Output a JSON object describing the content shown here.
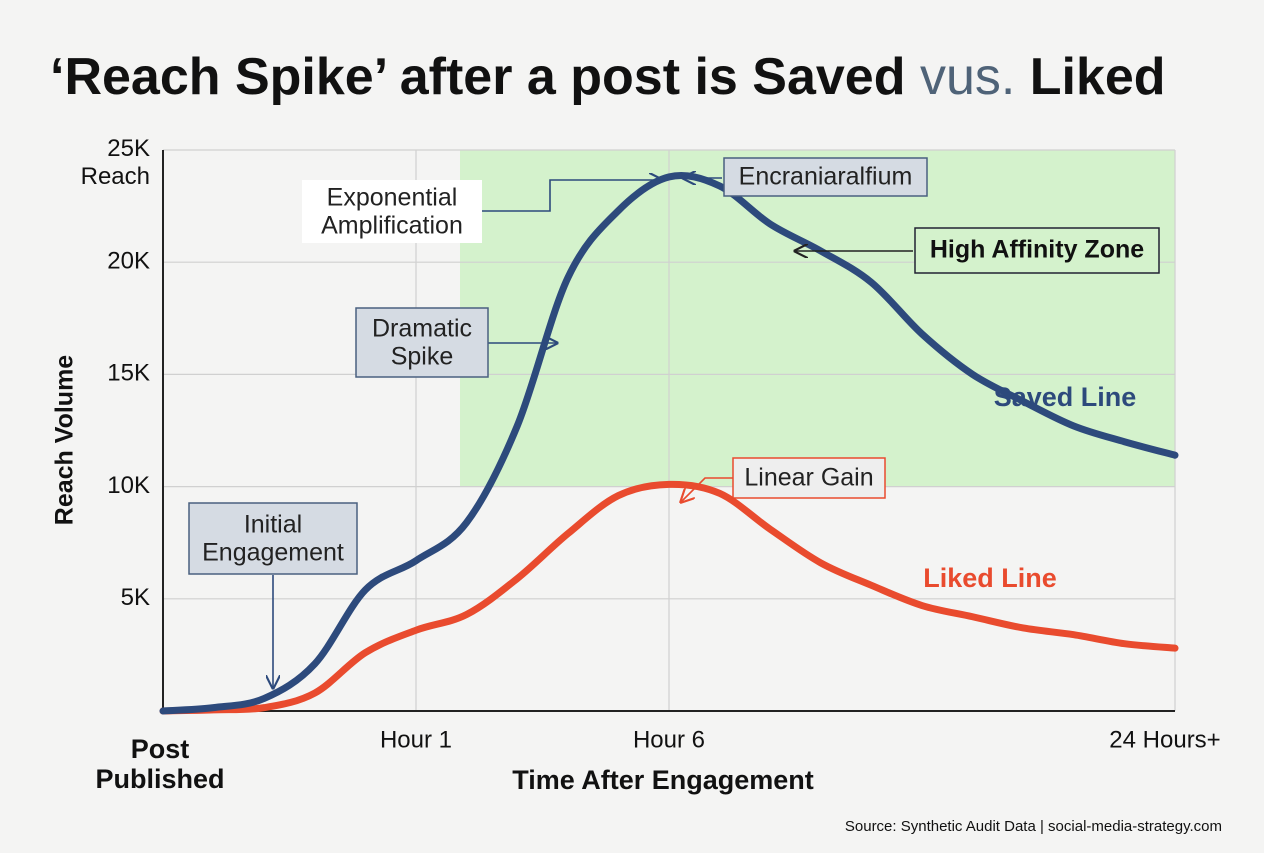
{
  "chart_data": {
    "type": "line",
    "title": [
      "‘Reach Spike’ after a post is Saved ",
      "vus.",
      " Liked"
    ],
    "x_label": "Time After Engagement",
    "y_label": "Reach Volume",
    "source": "Source: Synthetic Audit Data | social-media-strategy.com",
    "categories": [
      "Post Published",
      null,
      null,
      null,
      null,
      "Hour 1",
      null,
      null,
      null,
      null,
      "Hour 6",
      null,
      null,
      null,
      null,
      null,
      null,
      null,
      null,
      null,
      "24 Hours+"
    ],
    "series": [
      {
        "name": "Saved Line",
        "color": "#2d4a7c",
        "values": [
          0,
          150,
          560,
          2100,
          5400,
          6700,
          8400,
          12700,
          19300,
          22300,
          23800,
          23400,
          21700,
          20500,
          19100,
          16800,
          15000,
          13800,
          12700,
          12000,
          11400
        ]
      },
      {
        "name": "Liked Line",
        "color": "#e94b2e",
        "values": [
          0,
          50,
          150,
          800,
          2600,
          3600,
          4300,
          5900,
          7900,
          9600,
          10100,
          9700,
          8100,
          6600,
          5600,
          4700,
          4200,
          3700,
          3400,
          3000,
          2800
        ]
      }
    ],
    "ylim": [
      0,
      25000
    ],
    "yticks": [
      {
        "value": 5000,
        "label": "5K"
      },
      {
        "value": 10000,
        "label": "10K"
      },
      {
        "value": 15000,
        "label": "15K"
      },
      {
        "value": 20000,
        "label": "20K"
      },
      {
        "value": 25000,
        "label": "25K Reach"
      }
    ],
    "grid": true,
    "zone": {
      "label": "High Affinity Zone",
      "color": "#d4f2cc",
      "y_range": [
        10000,
        25000
      ]
    },
    "annotations": [
      "Initial Engagement",
      "Dramatic Spike",
      "Exponential Amplification",
      "Encraniaralfium",
      "Linear Gain"
    ]
  }
}
